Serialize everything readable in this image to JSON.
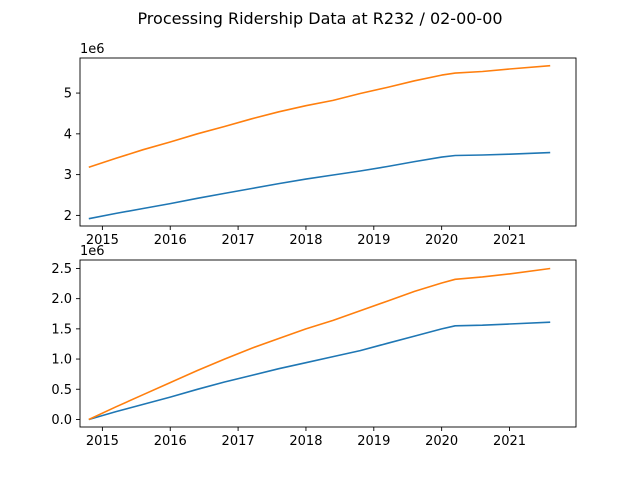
{
  "figure": {
    "title": "Processing Ridership Data at R232 / 02-00-00"
  },
  "chart_data": [
    {
      "type": "line",
      "title": "",
      "xlabel": "",
      "ylabel": "",
      "x_ticks": [
        "2015",
        "2016",
        "2017",
        "2018",
        "2019",
        "2020",
        "2021"
      ],
      "x_tick_values": [
        2015,
        2016,
        2017,
        2018,
        2019,
        2020,
        2021
      ],
      "y_ticks": [
        "2",
        "3",
        "4",
        "5"
      ],
      "y_tick_values": [
        2,
        3,
        4,
        5
      ],
      "y_offset_label": "1e6",
      "xlim": [
        2014.67,
        2021.98
      ],
      "ylim": [
        1.74,
        5.86
      ],
      "grid": false,
      "series": [
        {
          "color": "#1f77b4",
          "x": [
            2014.8,
            2015.2,
            2015.6,
            2016.0,
            2016.4,
            2016.8,
            2017.2,
            2017.6,
            2018.0,
            2018.4,
            2018.8,
            2019.2,
            2019.6,
            2020.0,
            2020.2,
            2020.6,
            2021.0,
            2021.6
          ],
          "y": [
            1.92,
            2.05,
            2.17,
            2.29,
            2.42,
            2.54,
            2.66,
            2.78,
            2.89,
            2.99,
            3.09,
            3.2,
            3.32,
            3.43,
            3.47,
            3.48,
            3.5,
            3.54
          ]
        },
        {
          "color": "#ff7f0e",
          "x": [
            2014.8,
            2015.2,
            2015.6,
            2016.0,
            2016.4,
            2016.8,
            2017.2,
            2017.6,
            2018.0,
            2018.4,
            2018.8,
            2019.2,
            2019.6,
            2020.0,
            2020.2,
            2020.6,
            2021.0,
            2021.6
          ],
          "y": [
            3.18,
            3.4,
            3.61,
            3.8,
            4.0,
            4.18,
            4.37,
            4.54,
            4.69,
            4.82,
            4.99,
            5.14,
            5.3,
            5.44,
            5.49,
            5.53,
            5.59,
            5.67
          ]
        }
      ]
    },
    {
      "type": "line",
      "title": "",
      "xlabel": "",
      "ylabel": "",
      "x_ticks": [
        "2015",
        "2016",
        "2017",
        "2018",
        "2019",
        "2020",
        "2021"
      ],
      "x_tick_values": [
        2015,
        2016,
        2017,
        2018,
        2019,
        2020,
        2021
      ],
      "y_ticks": [
        "0.0",
        "0.5",
        "1.0",
        "1.5",
        "2.0",
        "2.5"
      ],
      "y_tick_values": [
        0,
        0.5,
        1.0,
        1.5,
        2.0,
        2.5
      ],
      "y_offset_label": "1e6",
      "xlim": [
        2014.67,
        2021.98
      ],
      "ylim": [
        -0.125,
        2.64
      ],
      "grid": false,
      "series": [
        {
          "color": "#1f77b4",
          "x": [
            2014.8,
            2015.2,
            2015.6,
            2016.0,
            2016.4,
            2016.8,
            2017.2,
            2017.6,
            2018.0,
            2018.4,
            2018.8,
            2019.2,
            2019.6,
            2020.0,
            2020.2,
            2020.6,
            2021.0,
            2021.6
          ],
          "y": [
            0.0,
            0.13,
            0.25,
            0.37,
            0.5,
            0.62,
            0.73,
            0.84,
            0.94,
            1.04,
            1.14,
            1.26,
            1.38,
            1.5,
            1.55,
            1.56,
            1.58,
            1.61
          ],
          "note": ""
        },
        {
          "color": "#ff7f0e",
          "x": [
            2014.8,
            2015.2,
            2015.6,
            2016.0,
            2016.4,
            2016.8,
            2017.2,
            2017.6,
            2018.0,
            2018.4,
            2018.8,
            2019.2,
            2019.6,
            2020.0,
            2020.2,
            2020.6,
            2021.0,
            2021.6
          ],
          "y": [
            0.0,
            0.21,
            0.41,
            0.61,
            0.81,
            1.0,
            1.18,
            1.34,
            1.5,
            1.64,
            1.8,
            1.96,
            2.12,
            2.26,
            2.32,
            2.36,
            2.41,
            2.5
          ]
        }
      ]
    }
  ]
}
